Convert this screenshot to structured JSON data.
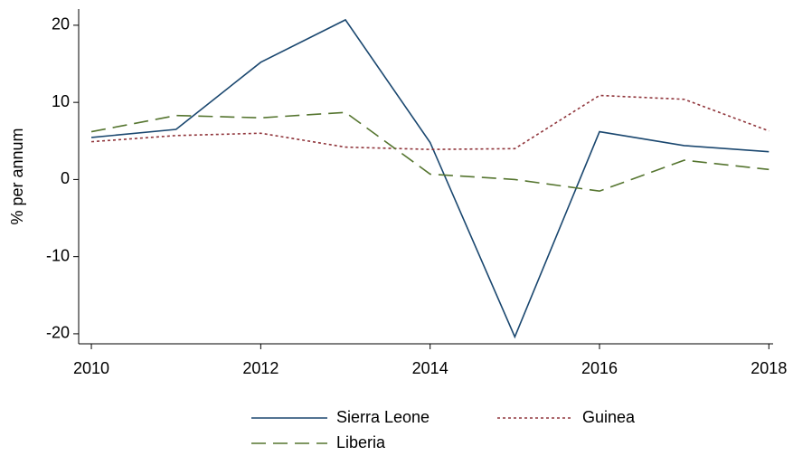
{
  "chart_data": {
    "type": "line",
    "y_label": "% per annum",
    "x": [
      2010,
      2011,
      2012,
      2013,
      2014,
      2015,
      2016,
      2017,
      2018
    ],
    "series": [
      {
        "name": "Sierra Leone",
        "color": "#1a476f",
        "values": [
          5.45,
          6.5,
          15.2,
          20.7,
          4.8,
          -20.4,
          6.2,
          4.4,
          3.6
        ]
      },
      {
        "name": "Guinea",
        "color": "#90353b",
        "values": [
          4.9,
          5.7,
          6.0,
          4.2,
          3.9,
          4.0,
          10.9,
          10.4,
          6.3
        ]
      },
      {
        "name": "Liberia",
        "color": "#55752f",
        "values": [
          6.2,
          8.3,
          8.0,
          8.7,
          0.7,
          0.0,
          -1.5,
          2.5,
          1.3
        ]
      }
    ],
    "xlim": [
      2009.85,
      2018.05
    ],
    "xticks": [
      2010,
      2012,
      2014,
      2016,
      2018
    ],
    "ylim": [
      -21.3,
      22.1
    ],
    "yticks": [
      -20,
      -10,
      0,
      10,
      20
    ],
    "grid": false
  }
}
